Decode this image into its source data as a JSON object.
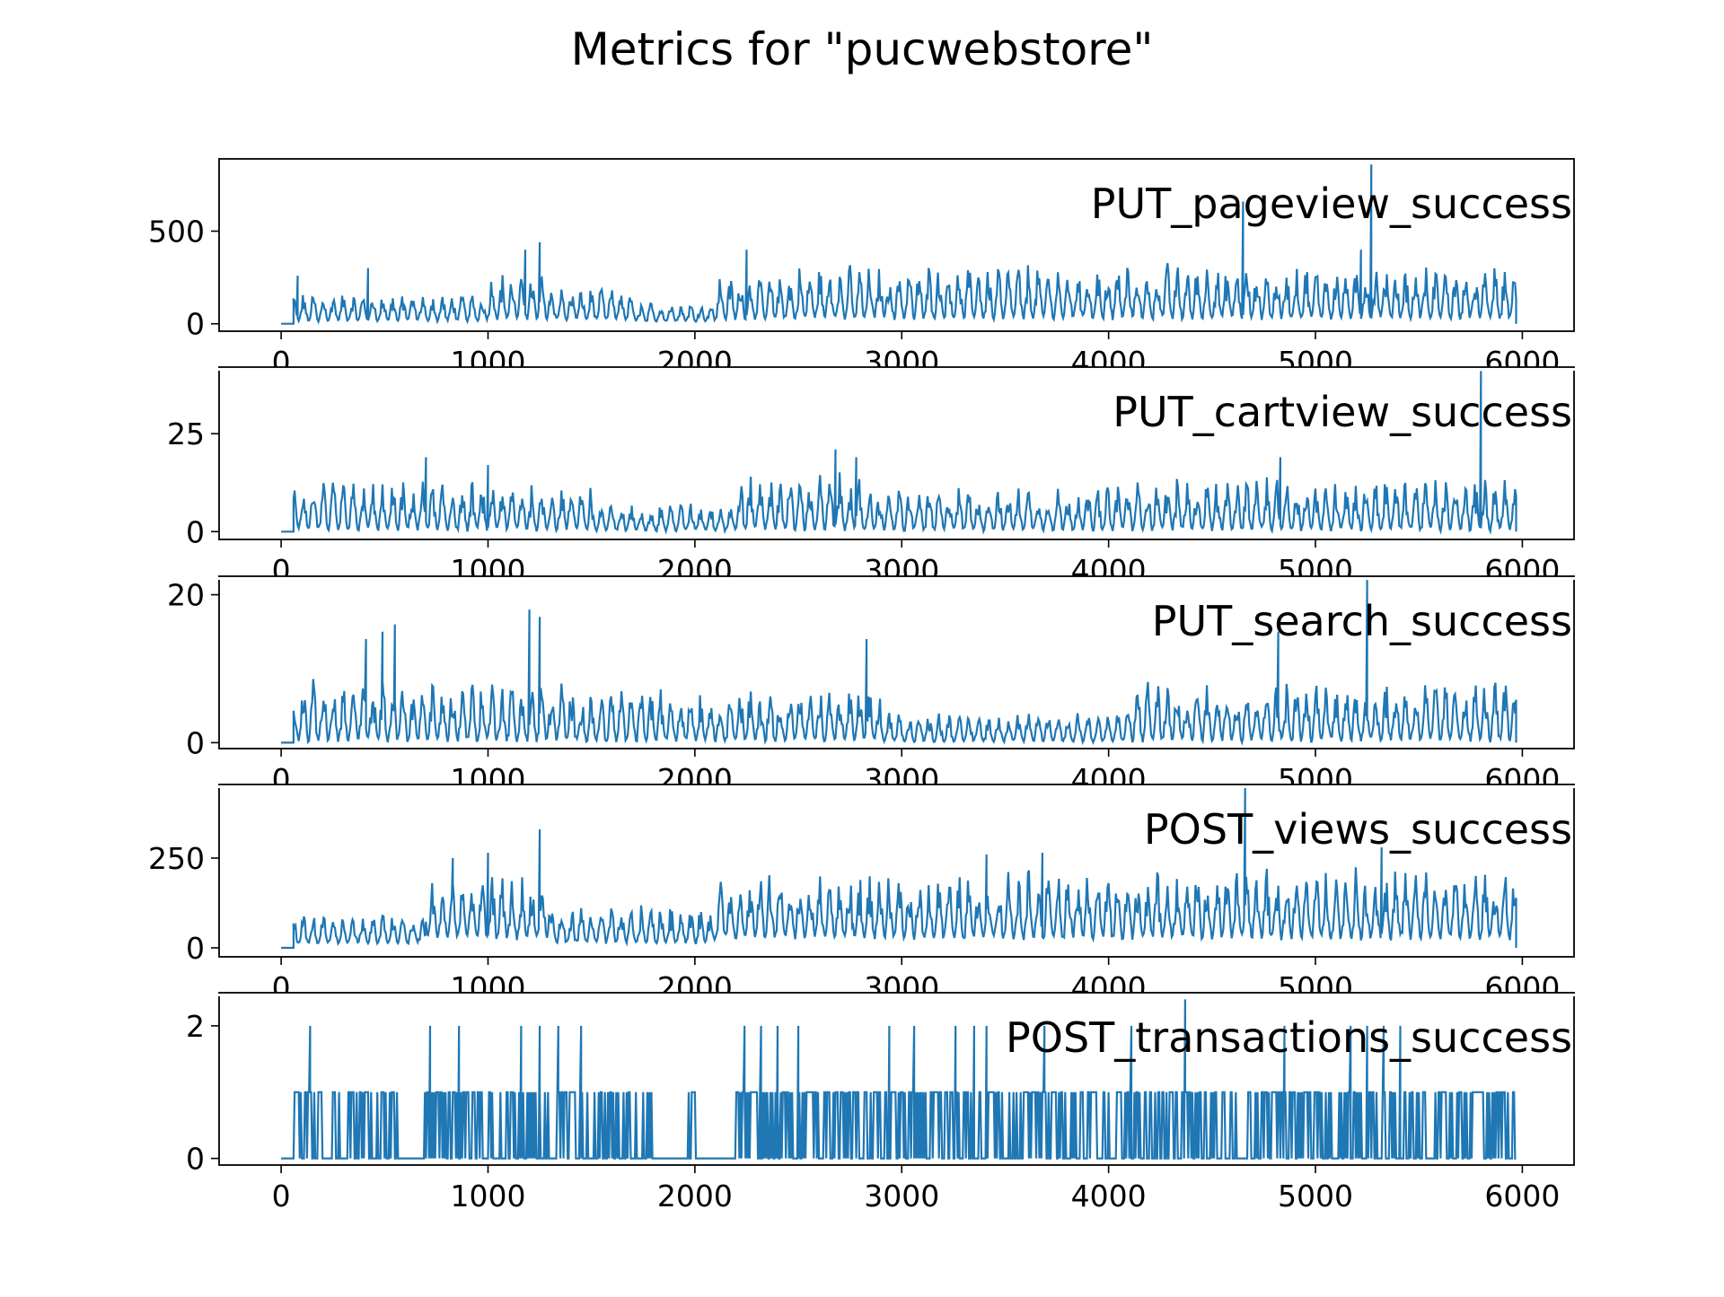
{
  "chart_data": {
    "type": "line",
    "title": "Metrics for \"pucwebstore\"",
    "xlabel": "",
    "ylabel": "",
    "shared_x_range": [
      -300,
      6250
    ],
    "x_ticks": [
      "0",
      "1000",
      "2000",
      "3000",
      "4000",
      "5000",
      "6000"
    ],
    "x_tick_values": [
      0,
      1000,
      2000,
      3000,
      4000,
      5000,
      6000
    ],
    "line_color": "#1f77b4",
    "grid": false,
    "panels": [
      {
        "label": "PUT_pageview_success",
        "ylim": [
          -40,
          890
        ],
        "y_ticks": [
          "0",
          "500"
        ],
        "y_tick_values": [
          0,
          500
        ],
        "flat_until": 60,
        "series_end": 5970,
        "baseline": 0,
        "segments": [
          {
            "x0": 60,
            "x1": 1000,
            "low": 10,
            "high": 160
          },
          {
            "x0": 1000,
            "x1": 1300,
            "low": 20,
            "high": 260
          },
          {
            "x0": 1300,
            "x1": 1700,
            "low": 15,
            "high": 190
          },
          {
            "x0": 1700,
            "x1": 2100,
            "low": 10,
            "high": 110
          },
          {
            "x0": 2100,
            "x1": 2500,
            "low": 20,
            "high": 250
          },
          {
            "x0": 2500,
            "x1": 3500,
            "low": 20,
            "high": 300
          },
          {
            "x0": 3500,
            "x1": 4500,
            "low": 20,
            "high": 310
          },
          {
            "x0": 4500,
            "x1": 5970,
            "low": 20,
            "high": 300
          }
        ],
        "peaks": [
          [
            80,
            260
          ],
          [
            420,
            300
          ],
          [
            1180,
            400
          ],
          [
            1250,
            440
          ],
          [
            2250,
            400
          ],
          [
            4650,
            660
          ],
          [
            5270,
            860
          ],
          [
            5220,
            400
          ]
        ]
      },
      {
        "label": "PUT_cartview_success",
        "ylim": [
          -2,
          42
        ],
        "y_ticks": [
          "0",
          "25"
        ],
        "y_tick_values": [
          0,
          25
        ],
        "flat_until": 60,
        "series_end": 5970,
        "baseline": 0,
        "segments": [
          {
            "x0": 60,
            "x1": 1500,
            "low": 0,
            "high": 12
          },
          {
            "x0": 1500,
            "x1": 2200,
            "low": 0,
            "high": 7
          },
          {
            "x0": 2200,
            "x1": 2800,
            "low": 0,
            "high": 14
          },
          {
            "x0": 2800,
            "x1": 4000,
            "low": 0,
            "high": 11
          },
          {
            "x0": 4000,
            "x1": 5970,
            "low": 0,
            "high": 13
          }
        ],
        "peaks": [
          [
            700,
            19
          ],
          [
            1000,
            17
          ],
          [
            2680,
            21
          ],
          [
            2780,
            19
          ],
          [
            4830,
            19
          ],
          [
            5800,
            41
          ]
        ]
      },
      {
        "label": "PUT_search_success",
        "ylim": [
          -0.8,
          22.5
        ],
        "y_ticks": [
          "0",
          "20"
        ],
        "y_tick_values": [
          0,
          20
        ],
        "flat_until": 60,
        "series_end": 5970,
        "baseline": 0,
        "segments": [
          {
            "x0": 60,
            "x1": 1400,
            "low": 0,
            "high": 8
          },
          {
            "x0": 1400,
            "x1": 2900,
            "low": 0,
            "high": 7
          },
          {
            "x0": 2900,
            "x1": 4100,
            "low": 0,
            "high": 4
          },
          {
            "x0": 4100,
            "x1": 5970,
            "low": 0,
            "high": 8
          }
        ],
        "peaks": [
          [
            410,
            14
          ],
          [
            490,
            15
          ],
          [
            550,
            16
          ],
          [
            1200,
            18
          ],
          [
            1250,
            17
          ],
          [
            2830,
            14
          ],
          [
            4820,
            15
          ],
          [
            5250,
            22
          ]
        ]
      },
      {
        "label": "POST_views_success",
        "ylim": [
          -25,
          455
        ],
        "y_ticks": [
          "0",
          "250"
        ],
        "y_tick_values": [
          0,
          250
        ],
        "flat_until": 60,
        "series_end": 5970,
        "baseline": 0,
        "segments": [
          {
            "x0": 60,
            "x1": 700,
            "low": 10,
            "high": 90
          },
          {
            "x0": 700,
            "x1": 1300,
            "low": 20,
            "high": 190
          },
          {
            "x0": 1300,
            "x1": 2100,
            "low": 10,
            "high": 110
          },
          {
            "x0": 2100,
            "x1": 3500,
            "low": 20,
            "high": 200
          },
          {
            "x0": 3500,
            "x1": 5970,
            "low": 20,
            "high": 210
          }
        ],
        "peaks": [
          [
            830,
            250
          ],
          [
            1000,
            265
          ],
          [
            1250,
            330
          ],
          [
            3410,
            260
          ],
          [
            3680,
            265
          ],
          [
            4660,
            450
          ],
          [
            5320,
            280
          ]
        ]
      },
      {
        "label": "POST_transactions_success",
        "ylim": [
          -0.1,
          2.5
        ],
        "y_ticks": [
          "0",
          "2"
        ],
        "y_tick_values": [
          0,
          2
        ],
        "flat_until": 60,
        "series_end": 5970,
        "baseline": 0,
        "segments": [
          {
            "x0": 60,
            "x1": 5970,
            "low": 0,
            "high": 1
          }
        ],
        "peaks": [
          [
            140,
            2
          ],
          [
            720,
            2
          ],
          [
            860,
            2
          ],
          [
            1160,
            2
          ],
          [
            1250,
            2
          ],
          [
            1340,
            2
          ],
          [
            1450,
            2
          ],
          [
            2240,
            2
          ],
          [
            2320,
            2
          ],
          [
            2400,
            2
          ],
          [
            2500,
            2
          ],
          [
            2940,
            2
          ],
          [
            3060,
            2
          ],
          [
            3260,
            2
          ],
          [
            3350,
            2
          ],
          [
            3410,
            2
          ],
          [
            3690,
            2
          ],
          [
            4110,
            2
          ],
          [
            4370,
            2.4
          ],
          [
            4850,
            2
          ],
          [
            5170,
            2
          ],
          [
            5250,
            2
          ],
          [
            5330,
            2
          ],
          [
            5410,
            2
          ]
        ]
      }
    ]
  }
}
